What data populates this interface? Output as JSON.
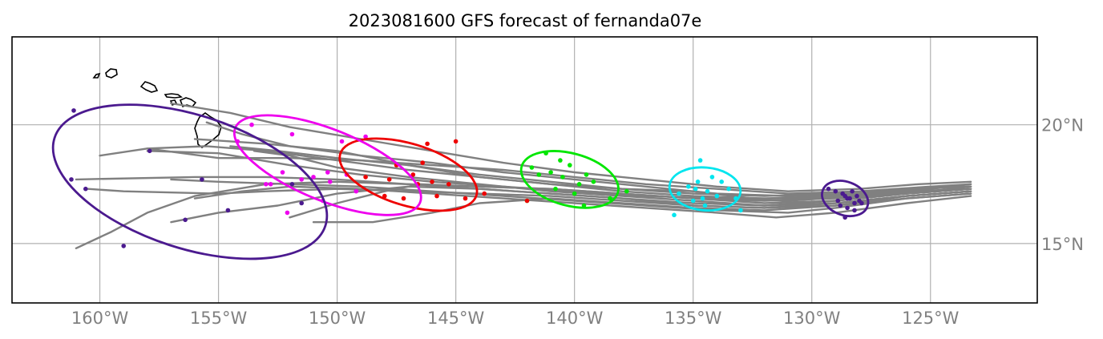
{
  "title": "2023081600 GFS forecast of fernanda07e",
  "map": {
    "lon_range": [
      -163.7,
      -120.5
    ],
    "lat_range": [
      12.5,
      23.7
    ],
    "lon_ticks": [
      -160,
      -155,
      -150,
      -145,
      -140,
      -135,
      -130,
      -125
    ],
    "lon_tick_labels": [
      "160°W",
      "155°W",
      "150°W",
      "145°W",
      "140°W",
      "135°W",
      "130°W",
      "125°W"
    ],
    "lat_ticks": [
      15,
      20
    ],
    "lat_tick_labels": [
      "15°N",
      "20°N"
    ],
    "grid": true,
    "lat_label_side": "right",
    "coastline": "Hawaiian Islands",
    "track_color": "#808080"
  },
  "chart_data": {
    "type": "scatter",
    "ensemble_tracks": [
      [
        [
          -123.3,
          17.5
        ],
        [
          -125,
          17.3
        ],
        [
          -127.5,
          17.1
        ],
        [
          -130,
          16.9
        ],
        [
          -132.5,
          16.9
        ],
        [
          -135,
          17.2
        ],
        [
          -138,
          17.3
        ],
        [
          -141,
          17.5
        ],
        [
          -144,
          17.8
        ],
        [
          -147,
          18.3
        ],
        [
          -150,
          18.9
        ],
        [
          -153,
          19.2
        ],
        [
          -156,
          19.4
        ]
      ],
      [
        [
          -123.3,
          17.4
        ],
        [
          -125,
          17.2
        ],
        [
          -128,
          17.0
        ],
        [
          -131,
          16.8
        ],
        [
          -134,
          16.9
        ],
        [
          -137,
          17.0
        ],
        [
          -140,
          17.2
        ],
        [
          -143,
          17.4
        ],
        [
          -146,
          17.6
        ],
        [
          -149,
          17.9
        ],
        [
          -152,
          18.3
        ],
        [
          -155,
          18.8
        ],
        [
          -158,
          18.9
        ]
      ],
      [
        [
          -123.3,
          17.3
        ],
        [
          -126,
          17.1
        ],
        [
          -129,
          16.8
        ],
        [
          -132,
          16.6
        ],
        [
          -135,
          16.7
        ],
        [
          -138,
          16.9
        ],
        [
          -141,
          17.1
        ],
        [
          -144,
          17.3
        ],
        [
          -147,
          17.5
        ],
        [
          -150,
          17.7
        ],
        [
          -153,
          17.8
        ],
        [
          -156,
          17.8
        ],
        [
          -161,
          17.7
        ]
      ],
      [
        [
          -123.3,
          17.2
        ],
        [
          -126,
          17.0
        ],
        [
          -129,
          16.6
        ],
        [
          -132,
          16.5
        ],
        [
          -135,
          16.6
        ],
        [
          -138,
          16.8
        ],
        [
          -141,
          17.0
        ],
        [
          -144,
          17.1
        ],
        [
          -147,
          17.2
        ],
        [
          -150,
          17.3
        ],
        [
          -153,
          17.2
        ],
        [
          -155,
          17.1
        ],
        [
          -159,
          17.2
        ],
        [
          -160.5,
          17.3
        ]
      ],
      [
        [
          -123.3,
          17.1
        ],
        [
          -126,
          16.9
        ],
        [
          -129,
          16.5
        ],
        [
          -131,
          16.3
        ],
        [
          -134,
          16.4
        ],
        [
          -137,
          16.6
        ],
        [
          -140,
          16.8
        ],
        [
          -143,
          17.0
        ],
        [
          -146,
          17.2
        ],
        [
          -149,
          17.4
        ],
        [
          -152,
          17.5
        ],
        [
          -155,
          17.6
        ],
        [
          -157,
          17.7
        ]
      ],
      [
        [
          -123.3,
          17.6
        ],
        [
          -125.5,
          17.5
        ],
        [
          -128,
          17.3
        ],
        [
          -131,
          17.2
        ],
        [
          -134,
          17.4
        ],
        [
          -137,
          17.7
        ],
        [
          -140,
          18.0
        ],
        [
          -143,
          18.4
        ],
        [
          -146,
          18.9
        ],
        [
          -149,
          19.4
        ],
        [
          -152,
          19.9
        ],
        [
          -154.5,
          20.5
        ],
        [
          -157,
          20.9
        ]
      ],
      [
        [
          -123.3,
          17.4
        ],
        [
          -125.5,
          17.3
        ],
        [
          -128,
          17.1
        ],
        [
          -131,
          17.0
        ],
        [
          -134,
          17.1
        ],
        [
          -137,
          17.4
        ],
        [
          -140,
          17.7
        ],
        [
          -143,
          18.0
        ],
        [
          -146,
          18.4
        ],
        [
          -149,
          18.7
        ],
        [
          -152,
          19.1
        ],
        [
          -154,
          19.6
        ],
        [
          -155.5,
          20.1
        ]
      ],
      [
        [
          -123.3,
          17.0
        ],
        [
          -126,
          16.7
        ],
        [
          -129,
          16.3
        ],
        [
          -131.5,
          16.1
        ],
        [
          -134,
          16.3
        ],
        [
          -137,
          16.5
        ],
        [
          -140,
          16.7
        ],
        [
          -143,
          16.9
        ],
        [
          -146,
          17.1
        ],
        [
          -149,
          17.3
        ],
        [
          -152,
          17.4
        ],
        [
          -154,
          17.2
        ],
        [
          -156,
          16.9
        ]
      ],
      [
        [
          -123.3,
          17.3
        ],
        [
          -126,
          17.1
        ],
        [
          -129,
          16.9
        ],
        [
          -132,
          16.8
        ],
        [
          -135,
          16.9
        ],
        [
          -138,
          17.1
        ],
        [
          -141,
          17.3
        ],
        [
          -144,
          17.4
        ],
        [
          -147,
          17.5
        ],
        [
          -150,
          17.6
        ],
        [
          -153,
          17.5
        ],
        [
          -156,
          17.0
        ],
        [
          -158,
          16.3
        ],
        [
          -159.5,
          15.5
        ],
        [
          -161,
          14.8
        ]
      ],
      [
        [
          -123.3,
          17.2
        ],
        [
          -126,
          17.0
        ],
        [
          -129,
          16.7
        ],
        [
          -132,
          16.5
        ],
        [
          -135,
          16.6
        ],
        [
          -138,
          16.9
        ],
        [
          -141,
          17.1
        ],
        [
          -144,
          17.3
        ],
        [
          -147,
          17.4
        ],
        [
          -150,
          17.1
        ],
        [
          -152.5,
          16.6
        ],
        [
          -155,
          16.3
        ],
        [
          -157,
          15.9
        ]
      ],
      [
        [
          -123.3,
          17.5
        ],
        [
          -125,
          17.4
        ],
        [
          -128,
          17.2
        ],
        [
          -131,
          17.1
        ],
        [
          -134,
          17.3
        ],
        [
          -137,
          17.5
        ],
        [
          -140,
          17.8
        ],
        [
          -143,
          18.1
        ],
        [
          -146,
          18.3
        ],
        [
          -149,
          18.5
        ],
        [
          -152,
          18.6
        ],
        [
          -155,
          18.6
        ],
        [
          -158,
          19.0
        ]
      ],
      [
        [
          -123.3,
          17.1
        ],
        [
          -126,
          16.9
        ],
        [
          -129,
          16.6
        ],
        [
          -132,
          16.4
        ],
        [
          -135,
          16.5
        ],
        [
          -138,
          16.7
        ],
        [
          -141,
          16.9
        ],
        [
          -144,
          16.7
        ],
        [
          -146,
          16.3
        ],
        [
          -148.5,
          15.9
        ],
        [
          -151,
          15.9
        ]
      ],
      [
        [
          -123.3,
          17.3
        ],
        [
          -126,
          17.2
        ],
        [
          -129,
          17.0
        ],
        [
          -132,
          16.9
        ],
        [
          -135,
          17.0
        ],
        [
          -138,
          17.2
        ],
        [
          -141,
          17.5
        ],
        [
          -144,
          17.8
        ],
        [
          -147,
          18.1
        ],
        [
          -150,
          18.5
        ],
        [
          -153,
          18.9
        ],
        [
          -155.5,
          19.1
        ],
        [
          -158,
          19.0
        ],
        [
          -160,
          18.7
        ]
      ],
      [
        [
          -123.3,
          17.4
        ],
        [
          -126,
          17.3
        ],
        [
          -129,
          17.1
        ],
        [
          -132,
          17.0
        ],
        [
          -135,
          17.1
        ],
        [
          -138,
          17.3
        ],
        [
          -141,
          17.6
        ],
        [
          -144,
          17.9
        ],
        [
          -147,
          18.3
        ],
        [
          -150,
          18.6
        ],
        [
          -152.5,
          18.9
        ],
        [
          -154.5,
          19.1
        ]
      ],
      [
        [
          -123.3,
          17.2
        ],
        [
          -126,
          17.0
        ],
        [
          -129,
          16.7
        ],
        [
          -132,
          16.6
        ],
        [
          -135,
          16.8
        ],
        [
          -138,
          17.0
        ],
        [
          -141,
          17.2
        ],
        [
          -144,
          17.5
        ],
        [
          -147,
          17.8
        ],
        [
          -150,
          18.2
        ],
        [
          -152,
          18.7
        ],
        [
          -153.5,
          18.9
        ]
      ],
      [
        [
          -123.3,
          17.3
        ],
        [
          -126,
          17.1
        ],
        [
          -129,
          16.8
        ],
        [
          -132,
          16.7
        ],
        [
          -135,
          16.9
        ],
        [
          -138,
          17.1
        ],
        [
          -141,
          17.3
        ],
        [
          -144,
          17.4
        ],
        [
          -146.5,
          17.5
        ],
        [
          -148,
          17.2
        ],
        [
          -150,
          16.7
        ],
        [
          -152,
          16.1
        ]
      ]
    ],
    "ensemble_points": [
      {
        "forecast_step": 1,
        "color": "#4b1a8f",
        "points": [
          [
            -128.4,
            16.9
          ],
          [
            -128.7,
            17.1
          ],
          [
            -128.2,
            16.7
          ],
          [
            -128.9,
            16.8
          ],
          [
            -128.1,
            17.0
          ],
          [
            -128.5,
            16.5
          ],
          [
            -128.3,
            17.2
          ],
          [
            -128.8,
            16.6
          ],
          [
            -128.0,
            16.8
          ],
          [
            -128.6,
            17.0
          ],
          [
            -129.0,
            17.2
          ],
          [
            -128.2,
            16.4
          ],
          [
            -128.5,
            16.9
          ],
          [
            -127.9,
            16.7
          ],
          [
            -128.6,
            16.1
          ],
          [
            -129.3,
            17.3
          ]
        ]
      },
      {
        "forecast_step": 2,
        "color": "#00e5ee",
        "points": [
          [
            -134.4,
            17.2
          ],
          [
            -134.8,
            17.6
          ],
          [
            -134.0,
            17.0
          ],
          [
            -135.2,
            17.4
          ],
          [
            -133.5,
            17.3
          ],
          [
            -134.6,
            16.9
          ],
          [
            -134.2,
            17.8
          ],
          [
            -135.0,
            16.8
          ],
          [
            -133.8,
            17.6
          ],
          [
            -134.9,
            17.3
          ],
          [
            -135.6,
            17.1
          ],
          [
            -133.2,
            16.9
          ],
          [
            -134.5,
            16.6
          ],
          [
            -135.8,
            16.2
          ],
          [
            -133.0,
            16.4
          ],
          [
            -134.7,
            18.5
          ]
        ]
      },
      {
        "forecast_step": 3,
        "color": "#00e600",
        "points": [
          [
            -140.5,
            17.8
          ],
          [
            -141.0,
            18.0
          ],
          [
            -139.8,
            17.5
          ],
          [
            -140.2,
            18.3
          ],
          [
            -141.5,
            17.9
          ],
          [
            -139.5,
            17.9
          ],
          [
            -140.8,
            17.3
          ],
          [
            -139.2,
            17.6
          ],
          [
            -141.8,
            18.2
          ],
          [
            -140.0,
            17.1
          ],
          [
            -138.5,
            16.9
          ],
          [
            -141.2,
            18.8
          ],
          [
            -139.6,
            16.6
          ],
          [
            -137.8,
            17.2
          ],
          [
            -142.0,
            16.8
          ],
          [
            -140.6,
            18.5
          ]
        ]
      },
      {
        "forecast_step": 4,
        "color": "#ee0000",
        "points": [
          [
            -146.0,
            17.6
          ],
          [
            -146.8,
            17.9
          ],
          [
            -145.3,
            17.5
          ],
          [
            -147.5,
            18.3
          ],
          [
            -146.4,
            18.4
          ],
          [
            -145.8,
            17.0
          ],
          [
            -147.8,
            17.7
          ],
          [
            -144.6,
            16.9
          ],
          [
            -148.8,
            17.8
          ],
          [
            -146.2,
            19.2
          ],
          [
            -145.0,
            19.3
          ],
          [
            -147.2,
            16.9
          ],
          [
            -143.8,
            17.1
          ],
          [
            -148.0,
            17.0
          ],
          [
            -146.6,
            17.5
          ],
          [
            -142.0,
            16.8
          ]
        ]
      },
      {
        "forecast_step": 5,
        "color": "#ee00ee",
        "points": [
          [
            -151.5,
            17.7
          ],
          [
            -152.3,
            18.0
          ],
          [
            -150.4,
            18.0
          ],
          [
            -152.8,
            17.5
          ],
          [
            -151.0,
            17.8
          ],
          [
            -153.0,
            17.5
          ],
          [
            -149.6,
            17.9
          ],
          [
            -151.9,
            19.6
          ],
          [
            -149.8,
            19.3
          ],
          [
            -150.6,
            16.8
          ],
          [
            -154.2,
            19.3
          ],
          [
            -152.1,
            16.3
          ],
          [
            -148.8,
            19.5
          ],
          [
            -150.3,
            17.6
          ],
          [
            -153.6,
            20.0
          ],
          [
            -149.2,
            17.2
          ]
        ]
      },
      {
        "forecast_step": 6,
        "color": "#4b1a8f",
        "points": [
          [
            -161.1,
            20.6
          ],
          [
            -157.9,
            18.9
          ],
          [
            -161.2,
            17.7
          ],
          [
            -160.6,
            17.3
          ],
          [
            -155.7,
            17.7
          ],
          [
            -154.6,
            16.4
          ],
          [
            -156.4,
            16.0
          ],
          [
            -159.0,
            14.9
          ],
          [
            -151.9,
            17.5
          ],
          [
            -151.5,
            16.7
          ]
        ]
      }
    ],
    "spread_ellipses": [
      {
        "color": "#4b1a8f",
        "center": [
          -128.6,
          16.9
        ],
        "semi_axis_lon": 1.0,
        "semi_axis_lat": 0.7,
        "rotation_deg": 20
      },
      {
        "color": "#00e5ee",
        "center": [
          -134.5,
          17.3
        ],
        "semi_axis_lon": 1.5,
        "semi_axis_lat": 0.9,
        "rotation_deg": 5
      },
      {
        "color": "#00e600",
        "center": [
          -140.2,
          17.7
        ],
        "semi_axis_lon": 2.1,
        "semi_axis_lat": 1.1,
        "rotation_deg": 15
      },
      {
        "color": "#ee0000",
        "center": [
          -147.0,
          17.9
        ],
        "semi_axis_lon": 3.0,
        "semi_axis_lat": 1.3,
        "rotation_deg": 17
      },
      {
        "color": "#ee00ee",
        "center": [
          -150.4,
          18.3
        ],
        "semi_axis_lon": 4.2,
        "semi_axis_lat": 1.5,
        "rotation_deg": 22
      },
      {
        "color": "#4b1a8f",
        "center": [
          -156.2,
          17.6
        ],
        "semi_axis_lon": 6.0,
        "semi_axis_lat": 2.8,
        "rotation_deg": 18
      }
    ]
  }
}
